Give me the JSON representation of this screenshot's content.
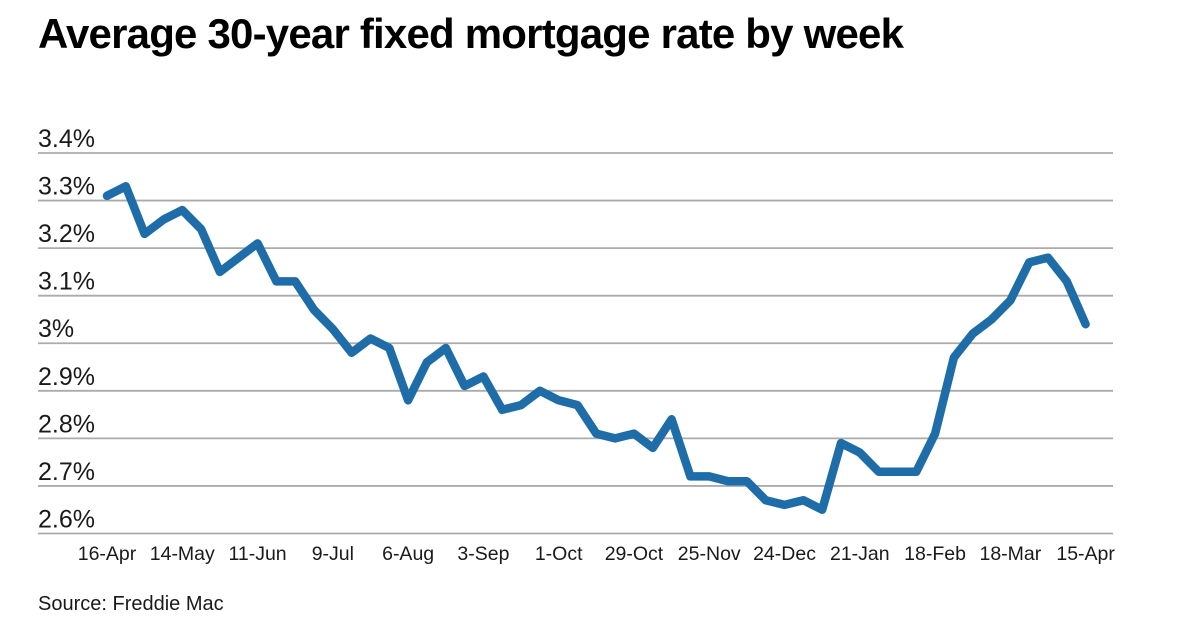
{
  "chart_data": {
    "type": "line",
    "title": "Average 30-year fixed mortgage rate by week",
    "source": "Source: Freddie Mac",
    "xlabel": "",
    "ylabel": "",
    "ylim": [
      2.6,
      3.4
    ],
    "grid": "horizontal",
    "legend": "none",
    "line_color": "#1f6da8",
    "gridline_color": "#ababab",
    "text_color": "#1a1a1a",
    "y_ticks": [
      {
        "label": "3.4%",
        "value": 3.4
      },
      {
        "label": "3.3%",
        "value": 3.3
      },
      {
        "label": "3.2%",
        "value": 3.2
      },
      {
        "label": "3.1%",
        "value": 3.1
      },
      {
        "label": "3%",
        "value": 3.0
      },
      {
        "label": "2.9%",
        "value": 2.9
      },
      {
        "label": "2.8%",
        "value": 2.8
      },
      {
        "label": "2.7%",
        "value": 2.7
      },
      {
        "label": "2.6%",
        "value": 2.6
      }
    ],
    "x_tick_labels": [
      "16-Apr",
      "14-May",
      "11-Jun",
      "9-Jul",
      "6-Aug",
      "3-Sep",
      "1-Oct",
      "29-Oct",
      "25-Nov",
      "24-Dec",
      "21-Jan",
      "18-Feb",
      "18-Mar",
      "15-Apr"
    ],
    "x_tick_every_n_points": 4,
    "x_unit": "week",
    "series": [
      {
        "name": "Average 30-year fixed mortgage rate (%)",
        "values": [
          3.31,
          3.33,
          3.23,
          3.26,
          3.28,
          3.24,
          3.15,
          3.18,
          3.21,
          3.13,
          3.13,
          3.07,
          3.03,
          2.98,
          3.01,
          2.99,
          2.88,
          2.96,
          2.99,
          2.91,
          2.93,
          2.86,
          2.87,
          2.9,
          2.88,
          2.87,
          2.81,
          2.8,
          2.81,
          2.78,
          2.84,
          2.72,
          2.72,
          2.71,
          2.71,
          2.67,
          2.66,
          2.67,
          2.65,
          2.79,
          2.77,
          2.73,
          2.73,
          2.73,
          2.81,
          2.97,
          3.02,
          3.05,
          3.09,
          3.17,
          3.18,
          3.13,
          3.04
        ]
      }
    ]
  }
}
